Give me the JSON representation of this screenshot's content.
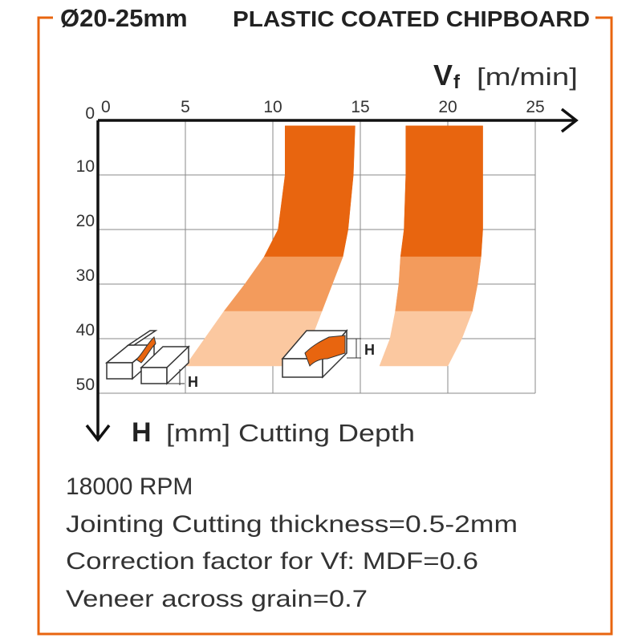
{
  "chart_data": {
    "type": "band",
    "title": "Ø20-25mm",
    "subtitle": "PLASTIC COATED CHIPBOARD",
    "x_label": "V",
    "x_label_sub": "f",
    "x_unit": "[m/min]",
    "y_label": "H",
    "y_unit": "[mm] Cutting Depth",
    "xlim": [
      0,
      25
    ],
    "xticks": [
      0,
      5,
      10,
      15,
      20,
      25
    ],
    "ylim": [
      0,
      50
    ],
    "yticks": [
      0,
      10,
      20,
      30,
      40,
      50
    ],
    "y_inverted": true,
    "grid": true,
    "frame_color": "#e8650f",
    "shades": [
      {
        "to": 25,
        "color": "#e8650f"
      },
      {
        "to": 35,
        "color": "#f39b5c"
      },
      {
        "to": 45,
        "color": "#fbc8a0"
      }
    ],
    "series": [
      {
        "depth": [
          1,
          10,
          20,
          25,
          30,
          35,
          40,
          45
        ],
        "low": [
          10.7,
          10.7,
          10.3,
          9.5,
          8.4,
          7.2,
          6.1,
          5.0
        ],
        "high": [
          14.7,
          14.6,
          14.3,
          14.0,
          13.4,
          12.8,
          12.2,
          11.6
        ]
      },
      {
        "depth": [
          1,
          10,
          20,
          25,
          30,
          35,
          40,
          45
        ],
        "low": [
          17.6,
          17.6,
          17.5,
          17.3,
          17.2,
          17.0,
          16.7,
          16.1
        ],
        "high": [
          22.0,
          22.0,
          22.0,
          21.9,
          21.7,
          21.4,
          20.8,
          20.0
        ]
      }
    ],
    "icon_labels": [
      "H",
      "H"
    ],
    "notes": [
      "18000 RPM",
      "Jointing Cutting thickness=0.5-2mm",
      "Correction factor for Vf: MDF=0.6",
      "Veneer across grain=0.7"
    ]
  }
}
